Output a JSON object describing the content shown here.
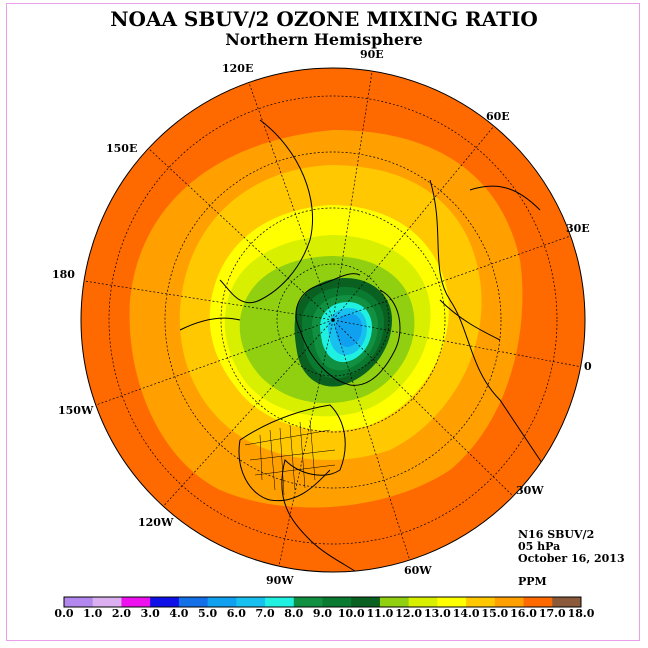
{
  "header": {
    "title": "NOAA SBUV/2 OZONE MIXING RATIO",
    "subtitle": "Northern Hemisphere"
  },
  "meridian_labels": [
    "120E",
    "90E",
    "60E",
    "30E",
    "0",
    "30W",
    "60W",
    "90W",
    "120W",
    "150W",
    "180",
    "150E"
  ],
  "info": {
    "satellite": "N16 SBUV/2",
    "level": "05 hPa",
    "date": "October 16, 2013",
    "units": "PPM"
  },
  "colorbar": {
    "ticks": [
      "0.0",
      "1.0",
      "2.0",
      "3.0",
      "4.0",
      "5.0",
      "6.0",
      "7.0",
      "8.0",
      "9.0",
      "10.0",
      "11.0",
      "12.0",
      "13.0",
      "14.0",
      "15.0",
      "16.0",
      "17.0",
      "18.0"
    ],
    "colors": [
      "#b388ee",
      "#dcb0f0",
      "#ee10ee",
      "#1010e8",
      "#1470e8",
      "#10a0f0",
      "#18c0f0",
      "#20f0e0",
      "#109040",
      "#0a7a30",
      "#0a6020",
      "#90d010",
      "#d8f000",
      "#ffff00",
      "#ffc800",
      "#ffa000",
      "#ff6a00",
      "#ee0000",
      "#8a5a3a"
    ]
  }
}
